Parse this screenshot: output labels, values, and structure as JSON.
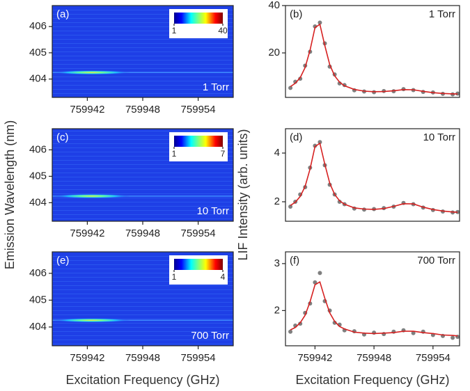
{
  "chart_data": [
    {
      "type": "heatmap",
      "panel": "(a)",
      "annotation": "1 Torr",
      "xlim": [
        759938.2,
        759957.8
      ],
      "xticks": [
        759942,
        759948,
        759954
      ],
      "ylim": [
        403.3,
        406.8
      ],
      "yticks": [
        404,
        405,
        406
      ],
      "peak": {
        "x": 759942.5,
        "y": 404.25
      },
      "colorbar": {
        "lim": [
          1,
          40
        ],
        "ticks": [
          1,
          40
        ]
      }
    },
    {
      "type": "line",
      "panel": "(b)",
      "annotation": "1 Torr",
      "xlim": [
        759939.0,
        759956.7
      ],
      "ylim": [
        1.2,
        40
      ],
      "yticks": [
        20,
        40
      ],
      "x": [
        759939.5,
        759940,
        759940.5,
        759941,
        759941.5,
        759942,
        759942.5,
        759943,
        759943.5,
        759944,
        759944.5,
        759945,
        759946,
        759947,
        759948,
        759949,
        759950,
        759951,
        759952,
        759953,
        759954,
        759955,
        759956,
        759956.5
      ],
      "series": [
        {
          "type": "scatter",
          "color": "#7f7f7f",
          "values": [
            5.2,
            7.8,
            9.1,
            14.6,
            20.5,
            31.2,
            32.8,
            24.0,
            14.2,
            10.9,
            7.1,
            6.4,
            4.2,
            3.7,
            3.4,
            3.9,
            3.8,
            4.7,
            4.3,
            3.5,
            3.3,
            2.7,
            2.5,
            2.8
          ]
        },
        {
          "type": "line",
          "color": "#d62020",
          "values": [
            5.75,
            7.19,
            9.58,
            13.8,
            21.2,
            30.7,
            32.1,
            23.1,
            15.0,
            10.3,
            7.65,
            6.12,
            4.54,
            3.86,
            3.62,
            3.66,
            4.01,
            4.48,
            4.42,
            3.76,
            3.2,
            2.88,
            2.69,
            2.64
          ]
        }
      ]
    },
    {
      "type": "heatmap",
      "panel": "(c)",
      "annotation": "10 Torr",
      "ylabel": "Emission Wavelength (nm)",
      "xlim": [
        759938.2,
        759957.8
      ],
      "xticks": [
        759942,
        759948,
        759954
      ],
      "ylim": [
        403.3,
        406.8
      ],
      "yticks": [
        404,
        405,
        406
      ],
      "peak": {
        "x": 759942.5,
        "y": 404.25
      },
      "colorbar": {
        "lim": [
          1,
          7
        ],
        "ticks": [
          1,
          7
        ]
      }
    },
    {
      "type": "line",
      "panel": "(d)",
      "annotation": "10 Torr",
      "ylabel": "LIF Intensity (arb. units)",
      "xlim": [
        759939.0,
        759956.7
      ],
      "ylim": [
        1.2,
        5.0
      ],
      "yticks": [
        2,
        4
      ],
      "x": [
        759939.5,
        759940,
        759940.5,
        759941,
        759941.5,
        759942,
        759942.5,
        759943,
        759943.5,
        759944,
        759944.5,
        759945,
        759946,
        759947,
        759948,
        759949,
        759950,
        759951,
        759952,
        759953,
        759954,
        759955,
        759956,
        759956.5
      ],
      "series": [
        {
          "type": "scatter",
          "color": "#7f7f7f",
          "values": [
            1.8,
            2.0,
            2.3,
            2.6,
            3.4,
            4.3,
            4.45,
            3.5,
            2.7,
            2.3,
            2.0,
            1.9,
            1.72,
            1.68,
            1.7,
            1.74,
            1.8,
            1.95,
            1.9,
            1.76,
            1.66,
            1.6,
            1.56,
            1.58
          ]
        },
        {
          "type": "line",
          "color": "#d62020",
          "values": [
            1.85,
            1.98,
            2.22,
            2.63,
            3.35,
            4.27,
            4.4,
            3.54,
            2.76,
            2.3,
            2.04,
            1.9,
            1.75,
            1.7,
            1.69,
            1.72,
            1.81,
            1.92,
            1.91,
            1.78,
            1.68,
            1.62,
            1.58,
            1.57
          ]
        }
      ]
    },
    {
      "type": "heatmap",
      "panel": "(e)",
      "annotation": "700 Torr",
      "xlabel": "Excitation Frequency (GHz)",
      "xlim": [
        759938.2,
        759957.8
      ],
      "xticks": [
        759942,
        759948,
        759954
      ],
      "ylim": [
        403.3,
        406.8
      ],
      "yticks": [
        404,
        405,
        406
      ],
      "peak": {
        "x": 759942.5,
        "y": 404.25
      },
      "colorbar": {
        "lim": [
          1,
          4
        ],
        "ticks": [
          1,
          4
        ]
      }
    },
    {
      "type": "line",
      "panel": "(f)",
      "annotation": "700 Torr",
      "xlabel": "Excitation Frequency (GHz)",
      "xlim": [
        759939.0,
        759956.7
      ],
      "xticks": [
        759942,
        759948,
        759954
      ],
      "ylim": [
        1.25,
        3.25
      ],
      "yticks": [
        2,
        3
      ],
      "x": [
        759939.5,
        759940,
        759940.5,
        759941,
        759941.5,
        759942,
        759942.5,
        759943,
        759943.5,
        759944,
        759944.5,
        759945,
        759946,
        759947,
        759948,
        759949,
        759950,
        759951,
        759952,
        759953,
        759954,
        759955,
        759956,
        759956.5
      ],
      "series": [
        {
          "type": "scatter",
          "color": "#7f7f7f",
          "values": [
            1.55,
            1.68,
            1.72,
            1.95,
            2.15,
            2.6,
            2.8,
            2.2,
            2.0,
            1.74,
            1.7,
            1.58,
            1.56,
            1.49,
            1.53,
            1.5,
            1.55,
            1.58,
            1.52,
            1.55,
            1.48,
            1.46,
            1.42,
            1.44
          ]
        },
        {
          "type": "line",
          "color": "#d62020",
          "values": [
            1.59,
            1.64,
            1.74,
            1.9,
            2.19,
            2.55,
            2.61,
            2.26,
            1.95,
            1.77,
            1.66,
            1.61,
            1.54,
            1.52,
            1.51,
            1.52,
            1.53,
            1.56,
            1.56,
            1.53,
            1.51,
            1.48,
            1.47,
            1.46
          ]
        }
      ]
    }
  ]
}
